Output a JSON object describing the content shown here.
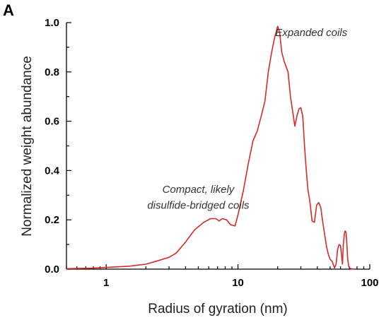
{
  "panel_label": "A",
  "chart_data": {
    "type": "line",
    "title": "",
    "xlabel": "Radius of gyration (nm)",
    "ylabel": "Normalized weight abundance",
    "xscale": "log",
    "xlim": [
      0.5,
      100
    ],
    "ylim": [
      0,
      1.0
    ],
    "xticks": [
      {
        "value": 1,
        "label": "1"
      },
      {
        "value": 10,
        "label": "10"
      },
      {
        "value": 100,
        "label": "100"
      }
    ],
    "yticks": [
      {
        "value": 0.0,
        "label": "0.0"
      },
      {
        "value": 0.2,
        "label": "0.2"
      },
      {
        "value": 0.4,
        "label": "0.4"
      },
      {
        "value": 0.6,
        "label": "0.6"
      },
      {
        "value": 0.8,
        "label": "0.8"
      },
      {
        "value": 1.0,
        "label": "1.0"
      }
    ],
    "grid": false,
    "series": [
      {
        "color": "#d42a2a",
        "x": [
          0.5,
          0.8,
          1.0,
          1.5,
          2.0,
          2.5,
          3.0,
          3.4,
          4.0,
          4.7,
          5.5,
          6.2,
          6.8,
          7.2,
          7.6,
          8.2,
          8.8,
          9.5,
          10.0,
          11.0,
          12.0,
          13.0,
          14.0,
          15.0,
          16.0,
          17.0,
          18.0,
          19.0,
          20.0,
          20.7,
          21.5,
          22.5,
          24.0,
          25.0,
          26.0,
          27.0,
          28.0,
          29.0,
          30.0,
          31.0,
          32.0,
          33.0,
          34.0,
          35.0,
          36.5,
          38.0,
          39.5,
          41.0,
          42.5,
          44.0,
          45.5,
          47.0,
          48.5,
          50.0,
          52.0,
          54.0,
          55.5,
          57.0,
          58.5,
          60.0,
          61.0,
          62.0,
          63.0,
          64.0,
          65.0,
          66.0,
          67.0,
          68.0,
          69.0,
          70.0,
          72.0,
          74.0,
          77.0
        ],
        "y": [
          0.002,
          0.004,
          0.007,
          0.012,
          0.02,
          0.035,
          0.048,
          0.065,
          0.11,
          0.16,
          0.19,
          0.205,
          0.205,
          0.195,
          0.205,
          0.2,
          0.18,
          0.175,
          0.22,
          0.32,
          0.43,
          0.52,
          0.56,
          0.62,
          0.68,
          0.8,
          0.88,
          0.94,
          0.985,
          0.96,
          0.88,
          0.84,
          0.8,
          0.7,
          0.64,
          0.58,
          0.62,
          0.65,
          0.655,
          0.62,
          0.5,
          0.4,
          0.32,
          0.28,
          0.195,
          0.19,
          0.26,
          0.27,
          0.25,
          0.19,
          0.14,
          0.09,
          0.06,
          0.04,
          0.03,
          0.005,
          0.02,
          0.08,
          0.1,
          0.095,
          0.06,
          0.02,
          0.1,
          0.14,
          0.155,
          0.15,
          0.1,
          0.04,
          0.015,
          0.005,
          0.002,
          0.001,
          0.0
        ]
      }
    ],
    "annotations": [
      {
        "text": "Expanded coils",
        "x": 36.0,
        "y": 0.945,
        "anchor": "middle"
      },
      {
        "text": "Compact, likely",
        "x": 5.0,
        "y": 0.31,
        "anchor": "middle"
      },
      {
        "text": "disulfide-bridged coils",
        "x": 5.0,
        "y": 0.245,
        "anchor": "middle"
      }
    ]
  }
}
